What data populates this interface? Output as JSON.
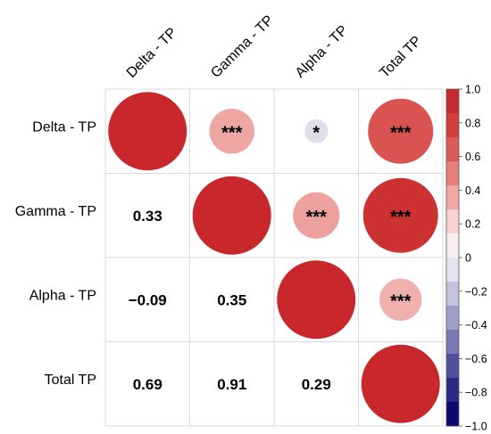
{
  "chart_data": {
    "type": "heatmap",
    "variables": [
      "Delta - TP",
      "Gamma - TP",
      "Alpha - TP",
      "Total TP"
    ],
    "correlation_matrix": [
      [
        1.0,
        0.33,
        -0.09,
        0.69
      ],
      [
        0.33,
        1.0,
        0.35,
        0.91
      ],
      [
        -0.09,
        0.35,
        1.0,
        0.29
      ],
      [
        0.69,
        0.91,
        0.29,
        1.0
      ]
    ],
    "lower_triangle_labels": [
      {
        "row": 1,
        "col": 0,
        "text": "0.33"
      },
      {
        "row": 2,
        "col": 0,
        "text": "−0.09"
      },
      {
        "row": 2,
        "col": 1,
        "text": "0.35"
      },
      {
        "row": 3,
        "col": 0,
        "text": "0.69"
      },
      {
        "row": 3,
        "col": 1,
        "text": "0.91"
      },
      {
        "row": 3,
        "col": 2,
        "text": "0.29"
      }
    ],
    "significance_marks": [
      {
        "row": 0,
        "col": 1,
        "text": "***"
      },
      {
        "row": 0,
        "col": 2,
        "text": "*"
      },
      {
        "row": 0,
        "col": 3,
        "text": "***"
      },
      {
        "row": 1,
        "col": 2,
        "text": "***"
      },
      {
        "row": 1,
        "col": 3,
        "text": "***"
      },
      {
        "row": 2,
        "col": 3,
        "text": "***"
      }
    ],
    "colorbar": {
      "range": [
        -1.0,
        1.0
      ],
      "ticks": [
        "1.0",
        "0.8",
        "0.6",
        "0.4",
        "0.2",
        "0",
        "−0.2",
        "−0.4",
        "−0.6",
        "−0.8",
        "−1.0"
      ],
      "colors_top_to_bottom": [
        "#c62a2f",
        "#d13e3c",
        "#dc5b56",
        "#e67f7a",
        "#f0a8a4",
        "#f8d2cf",
        "#fbeeee",
        "#e4e4f0",
        "#c3c3dd",
        "#9f9fca",
        "#7878b4",
        "#4f4f9c",
        "#2a2a86",
        "#0a0a70"
      ]
    },
    "colors": {
      "strong_positive": "#cc2a2a",
      "medium_positive": "#d04a4a",
      "weak_positive": "#efb7b7",
      "weak_negative": "#e4e4f2"
    }
  }
}
